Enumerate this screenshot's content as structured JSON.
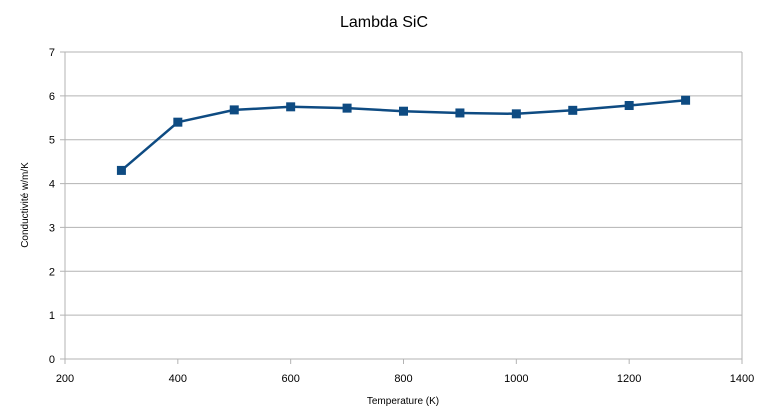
{
  "chart_data": {
    "type": "line",
    "title": "Lambda SiC",
    "xlabel": "Temperature (K)",
    "ylabel": "Conductivité w/m/K",
    "xlim": [
      200,
      1400
    ],
    "ylim": [
      0,
      7
    ],
    "xticks": [
      200,
      400,
      600,
      800,
      1000,
      1200,
      1400
    ],
    "yticks": [
      0,
      1,
      2,
      3,
      4,
      5,
      6,
      7
    ],
    "grid": true,
    "legend": "none",
    "series": [
      {
        "color": "#0e4b82",
        "marker": "square",
        "x": [
          300,
          400,
          500,
          600,
          700,
          800,
          900,
          1000,
          1100,
          1200,
          1300
        ],
        "y": [
          4.3,
          5.4,
          5.68,
          5.75,
          5.72,
          5.65,
          5.61,
          5.59,
          5.67,
          5.78,
          5.9
        ]
      }
    ],
    "colors": {
      "grid": "#b3b3b3",
      "axis": "#b3b3b3",
      "series": "#0e4b82"
    }
  }
}
